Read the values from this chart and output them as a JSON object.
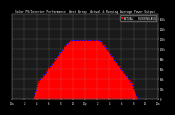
{
  "title": "Solar PV/Inverter Performance  West Array  Actual & Running Average Power Output",
  "bg_color": "#000000",
  "plot_bg": "#1a1a1a",
  "grid_color": "#888888",
  "bar_color": "#ff0000",
  "avg_color": "#0000ff",
  "ylim": [
    0,
    170
  ],
  "num_points": 300,
  "peak": 135,
  "clip_level": 118,
  "legend_actual": "ACTUAL",
  "legend_avg": "RUNNING AVG",
  "yticks": [
    0,
    20,
    40,
    60,
    80,
    100,
    120,
    140,
    160
  ],
  "xtick_labels": [
    "12a",
    "2",
    "4",
    "6",
    "8",
    "10",
    "12p",
    "2",
    "4",
    "6",
    "8",
    "10",
    "12a"
  ]
}
